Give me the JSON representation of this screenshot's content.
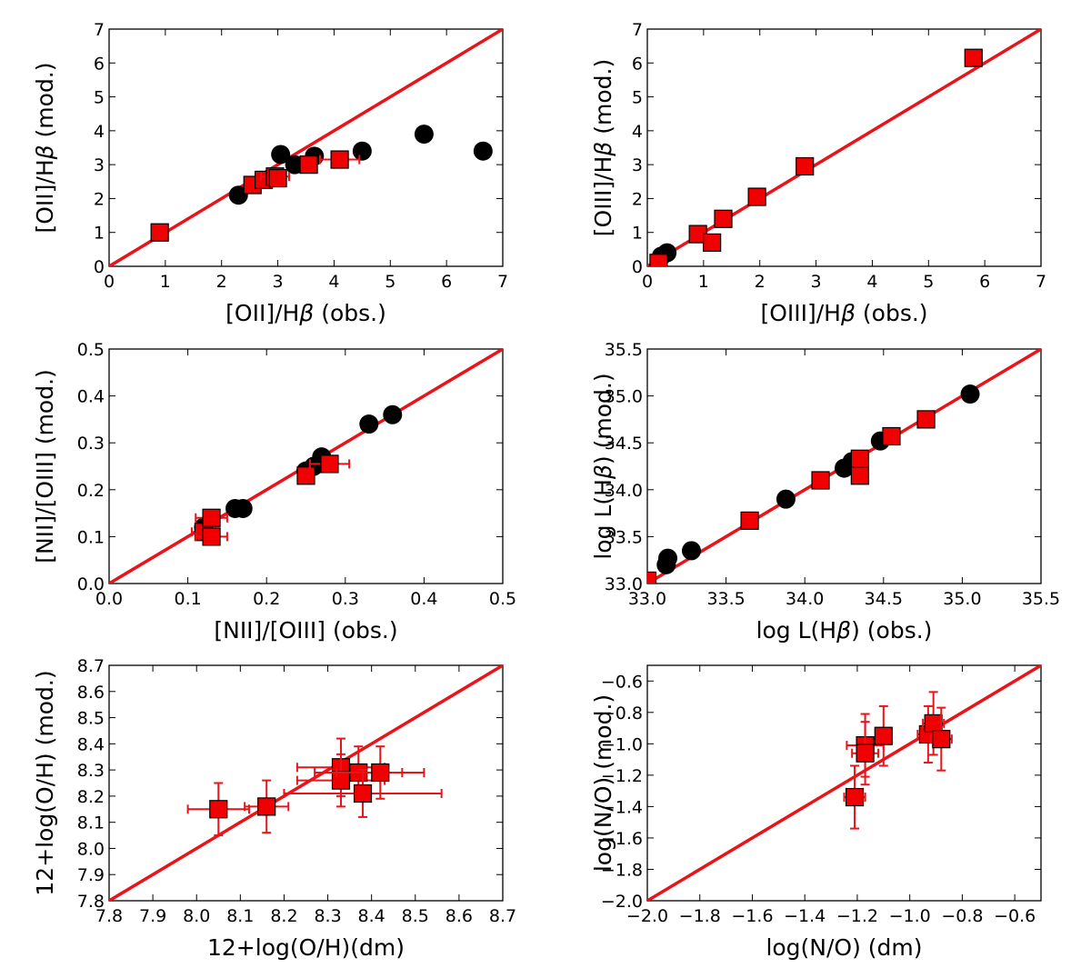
{
  "chart_data": [
    {
      "type": "scatter",
      "xlabel": "[OII]/Hβ (obs.)",
      "ylabel": "[OII]/Hβ (mod.)",
      "xlim": [
        0,
        7
      ],
      "ylim": [
        0,
        7
      ],
      "xticks": [
        0,
        1,
        2,
        3,
        4,
        5,
        6,
        7
      ],
      "yticks": [
        0,
        1,
        2,
        3,
        4,
        5,
        6,
        7
      ],
      "xtick_labels": [
        "0",
        "1",
        "2",
        "3",
        "4",
        "5",
        "6",
        "7"
      ],
      "ytick_labels": [
        "0",
        "1",
        "2",
        "3",
        "4",
        "5",
        "6",
        "7"
      ],
      "identity_line": true,
      "series": [
        {
          "name": "circles",
          "marker": "circle",
          "x": [
            2.3,
            3.05,
            3.3,
            3.65,
            4.5,
            5.6,
            6.65
          ],
          "y": [
            2.1,
            3.3,
            3.0,
            3.25,
            3.4,
            3.9,
            3.4
          ]
        },
        {
          "name": "squares",
          "marker": "square",
          "x": [
            0.9,
            2.55,
            2.75,
            2.95,
            3.0,
            3.55,
            4.1
          ],
          "y": [
            1.0,
            2.4,
            2.55,
            2.65,
            2.6,
            3.0,
            3.15
          ],
          "xerr": [
            0,
            0,
            0,
            0.25,
            0,
            0,
            0.35
          ],
          "yerr": [
            0,
            0,
            0,
            0,
            0,
            0,
            0
          ]
        }
      ]
    },
    {
      "type": "scatter",
      "xlabel": "[OIII]/Hβ (obs.)",
      "ylabel": "[OIII]/Hβ (mod.)",
      "xlim": [
        0,
        7
      ],
      "ylim": [
        0,
        7
      ],
      "xticks": [
        0,
        1,
        2,
        3,
        4,
        5,
        6,
        7
      ],
      "yticks": [
        0,
        1,
        2,
        3,
        4,
        5,
        6,
        7
      ],
      "xtick_labels": [
        "0",
        "1",
        "2",
        "3",
        "4",
        "5",
        "6",
        "7"
      ],
      "ytick_labels": [
        "0",
        "1",
        "2",
        "3",
        "4",
        "5",
        "6",
        "7"
      ],
      "identity_line": true,
      "series": [
        {
          "name": "circles",
          "marker": "circle",
          "x": [
            0.25,
            0.35
          ],
          "y": [
            0.3,
            0.4
          ]
        },
        {
          "name": "squares",
          "marker": "square",
          "x": [
            0.2,
            0.9,
            1.15,
            1.35,
            1.95,
            2.8,
            5.8
          ],
          "y": [
            0.1,
            0.95,
            0.7,
            1.4,
            2.05,
            2.95,
            6.15
          ],
          "xerr": [
            0,
            0,
            0,
            0,
            0,
            0,
            0
          ],
          "yerr": [
            0,
            0,
            0,
            0,
            0,
            0,
            0
          ]
        }
      ]
    },
    {
      "type": "scatter",
      "xlabel": "[NII]/[OIII] (obs.)",
      "ylabel": "[NII]/[OIII] (mod.)",
      "xlim": [
        0,
        0.5
      ],
      "ylim": [
        0,
        0.5
      ],
      "xticks": [
        0,
        0.1,
        0.2,
        0.3,
        0.4,
        0.5
      ],
      "yticks": [
        0,
        0.1,
        0.2,
        0.3,
        0.4,
        0.5
      ],
      "xtick_labels": [
        "0.0",
        "0.1",
        "0.2",
        "0.3",
        "0.4",
        "0.5"
      ],
      "ytick_labels": [
        "0.0",
        "0.1",
        "0.2",
        "0.3",
        "0.4",
        "0.5"
      ],
      "identity_line": true,
      "series": [
        {
          "name": "circles",
          "marker": "circle",
          "x": [
            0.12,
            0.16,
            0.17,
            0.25,
            0.26,
            0.27,
            0.33,
            0.36
          ],
          "y": [
            0.12,
            0.16,
            0.16,
            0.24,
            0.25,
            0.27,
            0.34,
            0.36
          ]
        },
        {
          "name": "squares",
          "marker": "square",
          "x": [
            0.12,
            0.13,
            0.13,
            0.25,
            0.28
          ],
          "y": [
            0.11,
            0.14,
            0.1,
            0.23,
            0.255
          ],
          "xerr": [
            0.015,
            0.02,
            0.02,
            0,
            0.025
          ],
          "yerr": [
            0,
            0,
            0,
            0,
            0
          ]
        }
      ]
    },
    {
      "type": "scatter",
      "xlabel": "log L(Hβ) (obs.)",
      "ylabel": "log L(Hβ) (mod.)",
      "xlim": [
        33.0,
        35.5
      ],
      "ylim": [
        33.0,
        35.5
      ],
      "xticks": [
        33.0,
        33.5,
        34.0,
        34.5,
        35.0,
        35.5
      ],
      "yticks": [
        33.0,
        33.5,
        34.0,
        34.5,
        35.0,
        35.5
      ],
      "xtick_labels": [
        "33.0",
        "33.5",
        "34.0",
        "34.5",
        "35.0",
        "35.5"
      ],
      "ytick_labels": [
        "33.0",
        "33.5",
        "34.0",
        "34.5",
        "35.0",
        "35.5"
      ],
      "identity_line": true,
      "series": [
        {
          "name": "circles",
          "marker": "circle",
          "x": [
            33.12,
            33.13,
            33.28,
            33.88,
            34.25,
            34.3,
            34.48,
            35.05
          ],
          "y": [
            33.2,
            33.27,
            33.35,
            33.9,
            34.23,
            34.3,
            34.52,
            35.02
          ]
        },
        {
          "name": "squares",
          "marker": "square",
          "x": [
            33.0,
            33.65,
            34.1,
            34.35,
            34.35,
            34.55,
            34.77
          ],
          "y": [
            33.03,
            33.67,
            34.1,
            34.33,
            34.15,
            34.57,
            34.75
          ],
          "xerr": [
            0,
            0,
            0,
            0,
            0,
            0,
            0
          ],
          "yerr": [
            0,
            0,
            0,
            0,
            0,
            0,
            0
          ]
        }
      ]
    },
    {
      "type": "scatter",
      "xlabel": "12+log(O/H)(dm)",
      "ylabel": "12+log(O/H) (mod.)",
      "xlim": [
        7.8,
        8.7
      ],
      "ylim": [
        7.8,
        8.7
      ],
      "xticks": [
        7.8,
        7.9,
        8.0,
        8.1,
        8.2,
        8.3,
        8.4,
        8.5,
        8.6,
        8.7
      ],
      "yticks": [
        7.8,
        7.9,
        8.0,
        8.1,
        8.2,
        8.3,
        8.4,
        8.5,
        8.6,
        8.7
      ],
      "xtick_labels": [
        "7.8",
        "7.9",
        "8.0",
        "8.1",
        "8.2",
        "8.3",
        "8.4",
        "8.5",
        "8.6",
        "8.7"
      ],
      "ytick_labels": [
        "7.8",
        "7.9",
        "8.0",
        "8.1",
        "8.2",
        "8.3",
        "8.4",
        "8.5",
        "8.6",
        "8.7"
      ],
      "identity_line": true,
      "series": [
        {
          "name": "squares",
          "marker": "square",
          "x": [
            8.05,
            8.16,
            8.33,
            8.33,
            8.37,
            8.38,
            8.42
          ],
          "y": [
            8.15,
            8.16,
            8.31,
            8.26,
            8.29,
            8.21,
            8.29
          ],
          "xerr": [
            0.07,
            0.05,
            0.1,
            0.1,
            0.1,
            0.18,
            0.1
          ],
          "yerr": [
            0.1,
            0.1,
            0.11,
            0.1,
            0.1,
            0.09,
            0.1
          ]
        }
      ]
    },
    {
      "type": "scatter",
      "xlabel": "log(N/O) (dm)",
      "ylabel": "log(N/O) (mod.)",
      "xlim": [
        -2.0,
        -0.5
      ],
      "ylim": [
        -2.0,
        -0.5
      ],
      "xticks": [
        -2.0,
        -1.8,
        -1.6,
        -1.4,
        -1.2,
        -1.0,
        -0.8,
        -0.6
      ],
      "yticks": [
        -2.0,
        -1.8,
        -1.6,
        -1.4,
        -1.2,
        -1.0,
        -0.8,
        -0.6
      ],
      "xtick_labels": [
        "−2.0",
        "−1.8",
        "−1.6",
        "−1.4",
        "−1.2",
        "−1.0",
        "−0.8",
        "−0.6"
      ],
      "ytick_labels": [
        "−2.0",
        "−1.8",
        "−1.6",
        "−1.4",
        "−1.2",
        "−1.0",
        "−0.8",
        "−0.6"
      ],
      "identity_line": true,
      "series": [
        {
          "name": "squares",
          "marker": "square",
          "x": [
            -1.21,
            -1.17,
            -1.17,
            -1.1,
            -0.93,
            -0.91,
            -0.88
          ],
          "y": [
            -1.34,
            -1.01,
            -1.06,
            -0.95,
            -0.94,
            -0.87,
            -0.97
          ],
          "xerr": [
            0.04,
            0.07,
            0.05,
            0.03,
            0.04,
            0.04,
            0.04
          ],
          "yerr": [
            0.2,
            0.2,
            0.2,
            0.19,
            0.18,
            0.2,
            0.2
          ]
        }
      ]
    }
  ]
}
